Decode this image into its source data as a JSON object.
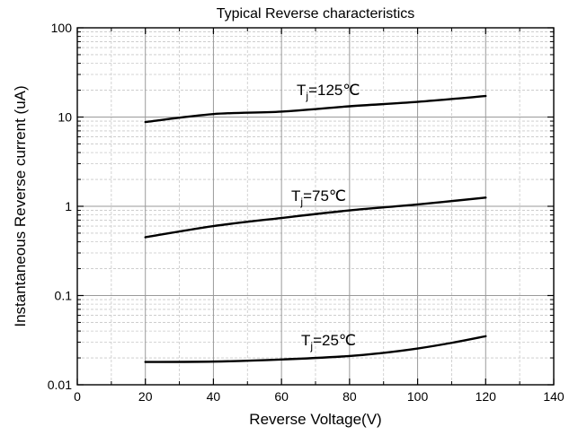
{
  "chart_data": {
    "type": "line",
    "title": "Typical Reverse characteristics",
    "xlabel": "Reverse Voltage(V)",
    "ylabel": "Instantaneous Reverse current (uA)",
    "x_scale": "linear",
    "y_scale": "log",
    "xlim": [
      0,
      140
    ],
    "ylim": [
      0.01,
      100
    ],
    "x_ticks": [
      0,
      20,
      40,
      60,
      80,
      100,
      120,
      140
    ],
    "y_ticks": [
      0.01,
      0.1,
      1,
      10,
      100
    ],
    "x_tick_labels": [
      "0",
      "20",
      "40",
      "60",
      "80",
      "100",
      "120",
      "140"
    ],
    "y_tick_labels": [
      "0.01",
      "0.1",
      "1",
      "10",
      "100"
    ],
    "grid": true,
    "series": [
      {
        "label_main": "T",
        "label_sub": "j",
        "label_rest": "=125℃",
        "color": "#000000",
        "x": [
          20,
          40,
          60,
          80,
          100,
          120
        ],
        "y": [
          8.8,
          10.8,
          11.5,
          13.2,
          14.8,
          17.2
        ]
      },
      {
        "label_main": "T",
        "label_sub": "j",
        "label_rest": "=75℃",
        "color": "#000000",
        "x": [
          20,
          40,
          60,
          80,
          100,
          120
        ],
        "y": [
          0.45,
          0.6,
          0.74,
          0.9,
          1.05,
          1.25
        ]
      },
      {
        "label_main": "T",
        "label_sub": "j",
        "label_rest": "=25℃",
        "color": "#000000",
        "x": [
          20,
          40,
          60,
          80,
          90,
          100,
          110,
          120
        ],
        "y": [
          0.018,
          0.0182,
          0.0192,
          0.021,
          0.0228,
          0.0255,
          0.0295,
          0.035
        ]
      }
    ]
  }
}
